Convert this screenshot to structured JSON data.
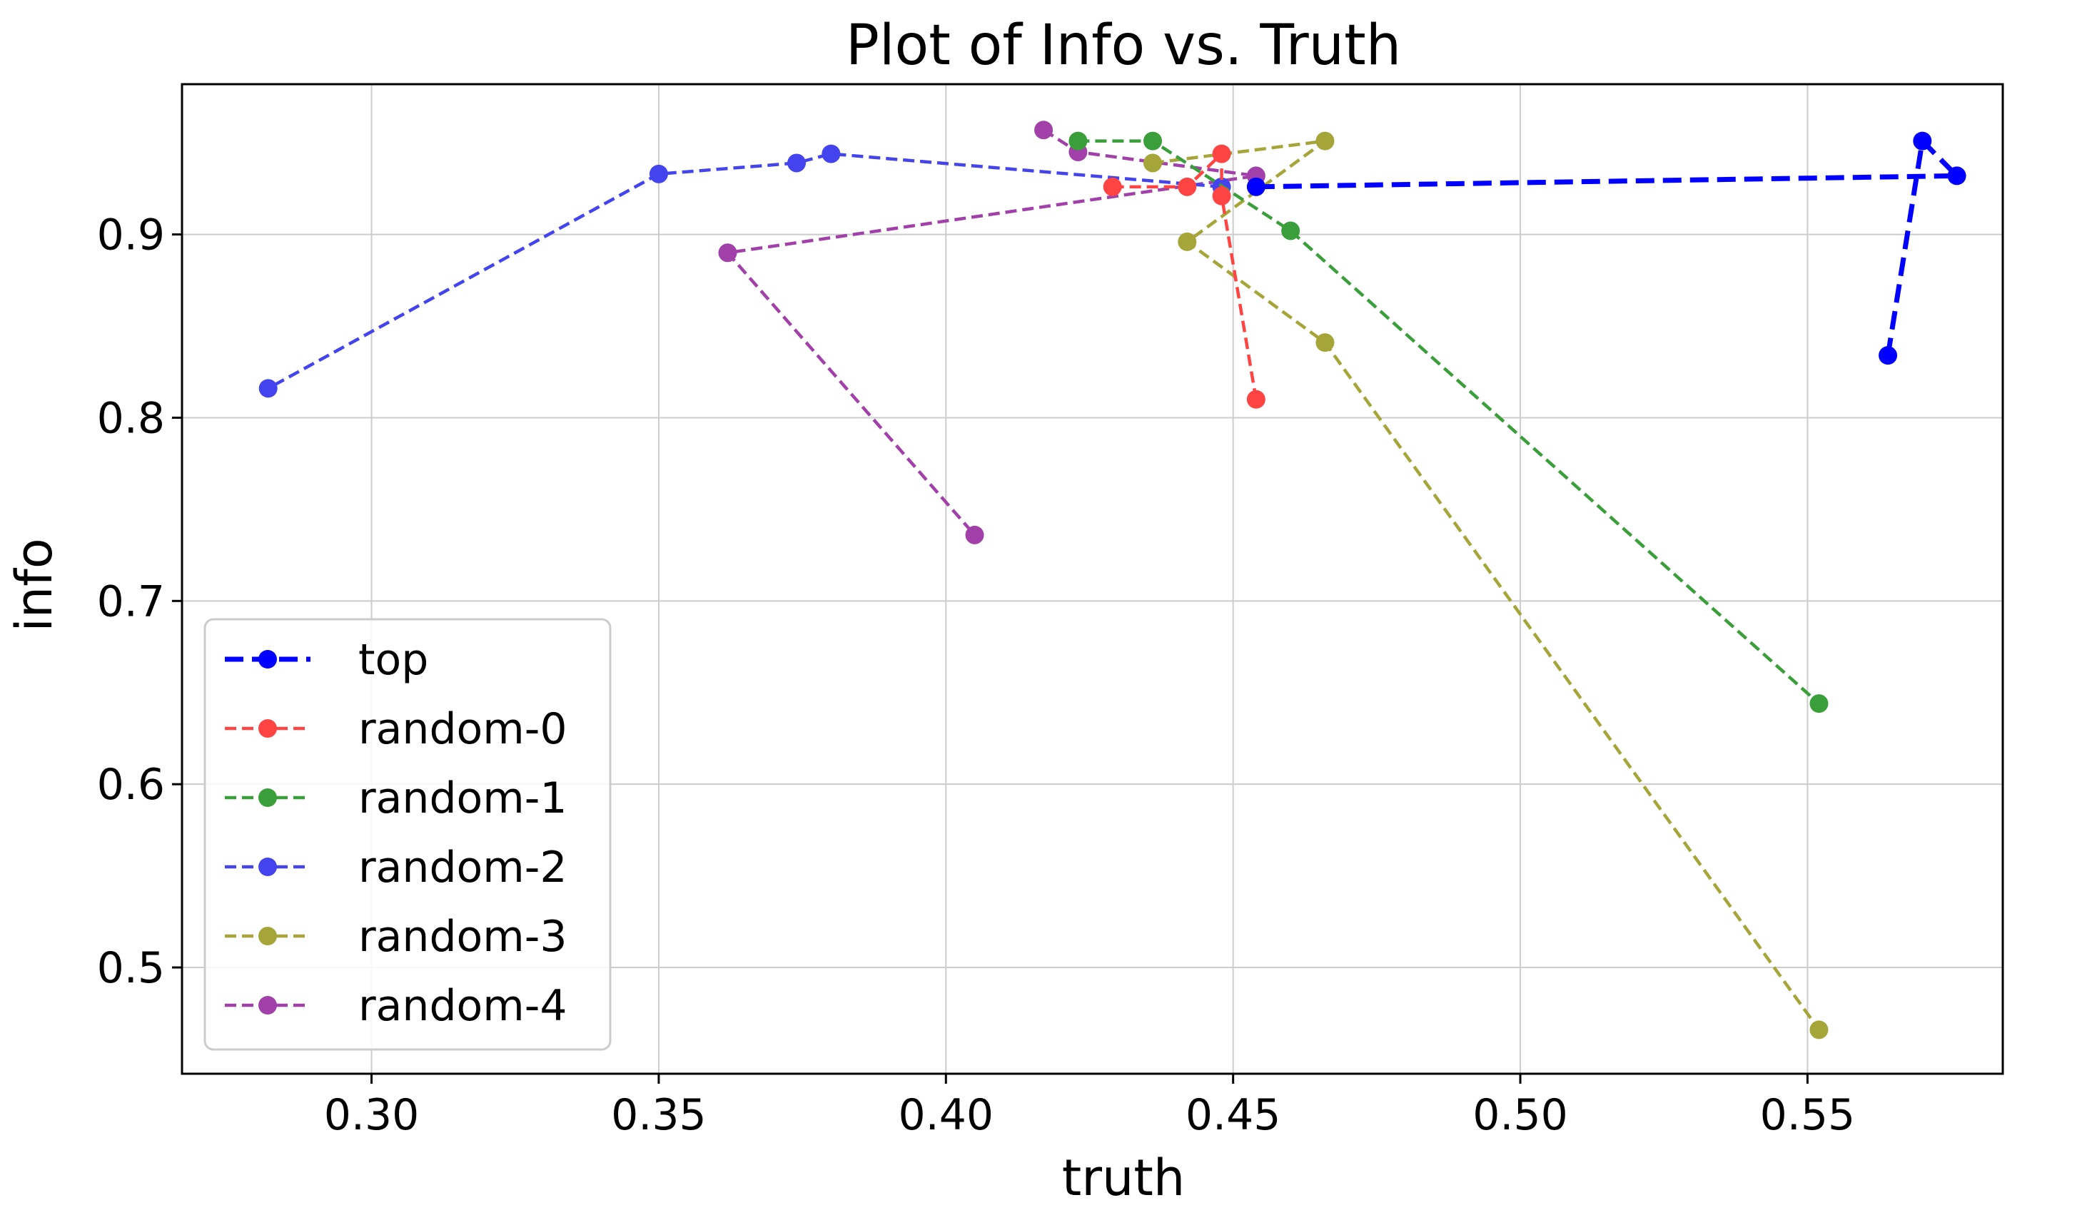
{
  "chart_data": {
    "type": "line",
    "title": "Plot of Info vs. Truth",
    "xlabel": "truth",
    "ylabel": "info",
    "xlim": [
      0.267,
      0.584
    ],
    "ylim": [
      0.442,
      0.982
    ],
    "xticks": [
      0.3,
      0.35,
      0.4,
      0.45,
      0.5,
      0.55
    ],
    "xtick_labels": [
      "0.30",
      "0.35",
      "0.40",
      "0.45",
      "0.50",
      "0.55"
    ],
    "yticks": [
      0.5,
      0.6,
      0.7,
      0.8,
      0.9
    ],
    "ytick_labels": [
      "0.5",
      "0.6",
      "0.7",
      "0.8",
      "0.9"
    ],
    "grid": true,
    "legend_position": "lower-left",
    "series": [
      {
        "name": "top",
        "color": "#0000ff",
        "linestyle": "dashed-bold",
        "points": [
          [
            0.454,
            0.926
          ],
          [
            0.576,
            0.932
          ],
          [
            0.57,
            0.951
          ],
          [
            0.564,
            0.834
          ]
        ]
      },
      {
        "name": "random-0",
        "color": "#ff4444",
        "linestyle": "dashed",
        "points": [
          [
            0.429,
            0.926
          ],
          [
            0.442,
            0.926
          ],
          [
            0.448,
            0.944
          ],
          [
            0.448,
            0.921
          ],
          [
            0.454,
            0.81
          ]
        ]
      },
      {
        "name": "random-1",
        "color": "#3a9f3a",
        "linestyle": "dashed",
        "points": [
          [
            0.423,
            0.951
          ],
          [
            0.436,
            0.951
          ],
          [
            0.46,
            0.902
          ],
          [
            0.552,
            0.644
          ]
        ]
      },
      {
        "name": "random-2",
        "color": "#4444ee",
        "linestyle": "dashed",
        "points": [
          [
            0.448,
            0.926
          ],
          [
            0.38,
            0.944
          ],
          [
            0.374,
            0.939
          ],
          [
            0.35,
            0.933
          ],
          [
            0.282,
            0.816
          ]
        ]
      },
      {
        "name": "random-3",
        "color": "#a6a53a",
        "linestyle": "dashed",
        "points": [
          [
            0.436,
            0.939
          ],
          [
            0.466,
            0.951
          ],
          [
            0.442,
            0.896
          ],
          [
            0.466,
            0.841
          ],
          [
            0.552,
            0.466
          ]
        ]
      },
      {
        "name": "random-4",
        "color": "#a040a8",
        "linestyle": "dashed",
        "points": [
          [
            0.417,
            0.957
          ],
          [
            0.423,
            0.945
          ],
          [
            0.454,
            0.932
          ],
          [
            0.362,
            0.89
          ],
          [
            0.405,
            0.736
          ]
        ]
      }
    ]
  }
}
